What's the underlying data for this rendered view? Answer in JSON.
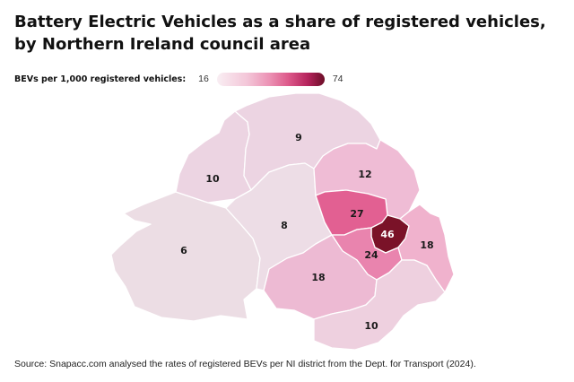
{
  "title": "Battery Electric Vehicles as a share of registered vehicles, by Northern Ireland council area",
  "legend": {
    "label": "BEVs per 1,000 registered vehicles:",
    "min": "16",
    "max": "74"
  },
  "colors": {
    "background": "#ffffff",
    "scale_low": "#f9eef3",
    "scale_high": "#6b0d26",
    "border": "#ffffff"
  },
  "chart_data": {
    "type": "choropleth",
    "scale_min": 16,
    "scale_max": 74,
    "regions": [
      {
        "id": "west-region",
        "label": "6",
        "value": 6,
        "color": "#ecdde4"
      },
      {
        "id": "northwest-region",
        "label": "10",
        "value": 10,
        "color": "#ecd4e2"
      },
      {
        "id": "north-region",
        "label": "9",
        "value": 9,
        "color": "#ecd4e2"
      },
      {
        "id": "central-region",
        "label": "8",
        "value": 8,
        "color": "#eddde6"
      },
      {
        "id": "northeast-region",
        "label": "12",
        "value": 12,
        "color": "#efbcd5"
      },
      {
        "id": "east-central-region",
        "label": "27",
        "value": 27,
        "color": "#e26092"
      },
      {
        "id": "belfast-region",
        "label": "46",
        "value": 46,
        "color": "#7a1228"
      },
      {
        "id": "lisburn-region",
        "label": "24",
        "value": 24,
        "color": "#e984ae"
      },
      {
        "id": "ards-region",
        "label": "18",
        "value": 18,
        "color": "#f0b2cd"
      },
      {
        "id": "south-central-region",
        "label": "18",
        "value": 18,
        "color": "#edbad3"
      },
      {
        "id": "newry-region",
        "label": "10",
        "value": 10,
        "color": "#eed0df"
      }
    ]
  },
  "source": "Source: Snapacc.com analysed the rates of registered BEVs per NI district from the Dept. for Transport (2024)."
}
